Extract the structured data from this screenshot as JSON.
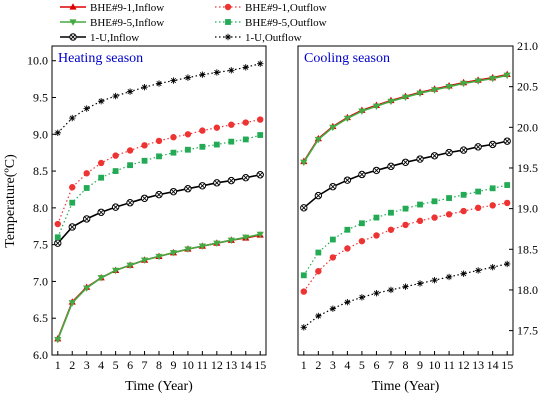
{
  "chart_data": [
    {
      "type": "line",
      "title": "Heating season",
      "xlabel": "Time (Year)",
      "ylabel": "Temperature(ºC)",
      "xlim": [
        0.6,
        15.4
      ],
      "ylim": [
        6.0,
        10.2
      ],
      "xticks": [
        "1",
        "2",
        "3",
        "4",
        "5",
        "6",
        "7",
        "8",
        "9",
        "10",
        "11",
        "12",
        "13",
        "14",
        "15"
      ],
      "yticks": [
        "6.0",
        "6.5",
        "7.0",
        "7.5",
        "8.0",
        "8.5",
        "9.0",
        "9.5",
        "10.0"
      ],
      "x": [
        1,
        2,
        3,
        4,
        5,
        6,
        7,
        8,
        9,
        10,
        11,
        12,
        13,
        14,
        15
      ],
      "series": [
        {
          "name": "BHE#9-1,Inflow",
          "color": "#dd0000",
          "marker": "triangle-up",
          "line": "solid",
          "values": [
            6.22,
            6.72,
            6.92,
            7.05,
            7.15,
            7.22,
            7.29,
            7.34,
            7.39,
            7.44,
            7.48,
            7.52,
            7.56,
            7.59,
            7.63
          ]
        },
        {
          "name": "BHE#9-5,Inflow",
          "color": "#44aa44",
          "marker": "triangle-down",
          "line": "solid",
          "values": [
            6.21,
            6.71,
            6.91,
            7.05,
            7.15,
            7.22,
            7.29,
            7.34,
            7.39,
            7.44,
            7.48,
            7.52,
            7.56,
            7.6,
            7.64
          ]
        },
        {
          "name": "1-U,Inflow",
          "color": "#000000",
          "marker": "circle-x",
          "line": "solid",
          "values": [
            7.52,
            7.74,
            7.85,
            7.94,
            8.01,
            8.07,
            8.13,
            8.18,
            8.22,
            8.26,
            8.3,
            8.34,
            8.37,
            8.41,
            8.45
          ]
        },
        {
          "name": "BHE#9-1,Outflow",
          "color": "#ee3333",
          "marker": "circle",
          "line": "dotted",
          "values": [
            7.78,
            8.28,
            8.47,
            8.61,
            8.71,
            8.78,
            8.85,
            8.91,
            8.96,
            9.0,
            9.05,
            9.09,
            9.13,
            9.16,
            9.2
          ]
        },
        {
          "name": "BHE#9-5,Outflow",
          "color": "#22aa55",
          "marker": "square",
          "line": "dotted",
          "values": [
            7.6,
            8.07,
            8.27,
            8.41,
            8.5,
            8.58,
            8.64,
            8.7,
            8.75,
            8.79,
            8.83,
            8.86,
            8.9,
            8.93,
            8.99
          ]
        },
        {
          "name": "1-U,Outflow",
          "color": "#000000",
          "marker": "asterisk",
          "line": "dotted",
          "values": [
            9.02,
            9.22,
            9.35,
            9.45,
            9.52,
            9.58,
            9.64,
            9.69,
            9.73,
            9.77,
            9.81,
            9.84,
            9.87,
            9.91,
            9.96
          ]
        }
      ]
    },
    {
      "type": "line",
      "title": "Cooling season",
      "xlabel": "Time (Year)",
      "ylabel": "",
      "xlim": [
        0.6,
        15.4
      ],
      "ylim": [
        17.2,
        21.0
      ],
      "xticks": [
        "1",
        "2",
        "3",
        "4",
        "5",
        "6",
        "7",
        "8",
        "9",
        "10",
        "11",
        "12",
        "13",
        "14",
        "15"
      ],
      "yticks": [
        "17.5",
        "18.0",
        "18.5",
        "19.0",
        "19.5",
        "20.0",
        "20.5",
        "21.0"
      ],
      "x": [
        1,
        2,
        3,
        4,
        5,
        6,
        7,
        8,
        9,
        10,
        11,
        12,
        13,
        14,
        15
      ],
      "series": [
        {
          "name": "BHE#9-1,Inflow",
          "color": "#dd0000",
          "marker": "triangle-up",
          "line": "solid",
          "values": [
            19.58,
            19.86,
            20.01,
            20.12,
            20.21,
            20.27,
            20.33,
            20.38,
            20.43,
            20.47,
            20.51,
            20.55,
            20.58,
            20.61,
            20.65
          ]
        },
        {
          "name": "BHE#9-5,Inflow",
          "color": "#44aa44",
          "marker": "triangle-down",
          "line": "solid",
          "values": [
            19.57,
            19.85,
            20.0,
            20.11,
            20.2,
            20.26,
            20.32,
            20.37,
            20.42,
            20.46,
            20.5,
            20.54,
            20.57,
            20.6,
            20.64
          ]
        },
        {
          "name": "1-U,Inflow",
          "color": "#000000",
          "marker": "circle-x",
          "line": "solid",
          "values": [
            19.01,
            19.16,
            19.27,
            19.35,
            19.42,
            19.47,
            19.52,
            19.57,
            19.61,
            19.65,
            19.69,
            19.72,
            19.76,
            19.79,
            19.83
          ]
        },
        {
          "name": "BHE#9-1,Outflow",
          "color": "#ee3333",
          "marker": "circle",
          "line": "dotted",
          "values": [
            17.98,
            18.23,
            18.4,
            18.51,
            18.6,
            18.67,
            18.74,
            18.8,
            18.85,
            18.89,
            18.93,
            18.97,
            19.01,
            19.04,
            19.07
          ]
        },
        {
          "name": "BHE#9-5,Outflow",
          "color": "#22aa55",
          "marker": "square",
          "line": "dotted",
          "values": [
            18.18,
            18.46,
            18.62,
            18.74,
            18.82,
            18.89,
            18.95,
            19.0,
            19.05,
            19.09,
            19.13,
            19.17,
            19.21,
            19.25,
            19.29
          ]
        },
        {
          "name": "1-U,Outflow",
          "color": "#000000",
          "marker": "asterisk",
          "line": "dotted",
          "values": [
            17.54,
            17.68,
            17.77,
            17.85,
            17.91,
            17.96,
            18.0,
            18.04,
            18.08,
            18.12,
            18.16,
            18.2,
            18.24,
            18.28,
            18.32
          ]
        }
      ]
    }
  ],
  "legend": {
    "placement": "top",
    "items": [
      {
        "label": "BHE#9-1,Inflow",
        "color": "#dd0000",
        "marker": "triangle-up",
        "line": "solid"
      },
      {
        "label": "BHE#9-1,Outflow",
        "color": "#ee3333",
        "marker": "circle",
        "line": "dotted"
      },
      {
        "label": "BHE#9-5,Inflow",
        "color": "#44aa44",
        "marker": "triangle-down",
        "line": "solid"
      },
      {
        "label": "BHE#9-5,Outflow",
        "color": "#22aa55",
        "marker": "square",
        "line": "dotted"
      },
      {
        "label": "1-U,Inflow",
        "color": "#000000",
        "marker": "circle-x",
        "line": "solid"
      },
      {
        "label": "1-U,Outflow",
        "color": "#000000",
        "marker": "asterisk",
        "line": "dotted"
      }
    ]
  }
}
